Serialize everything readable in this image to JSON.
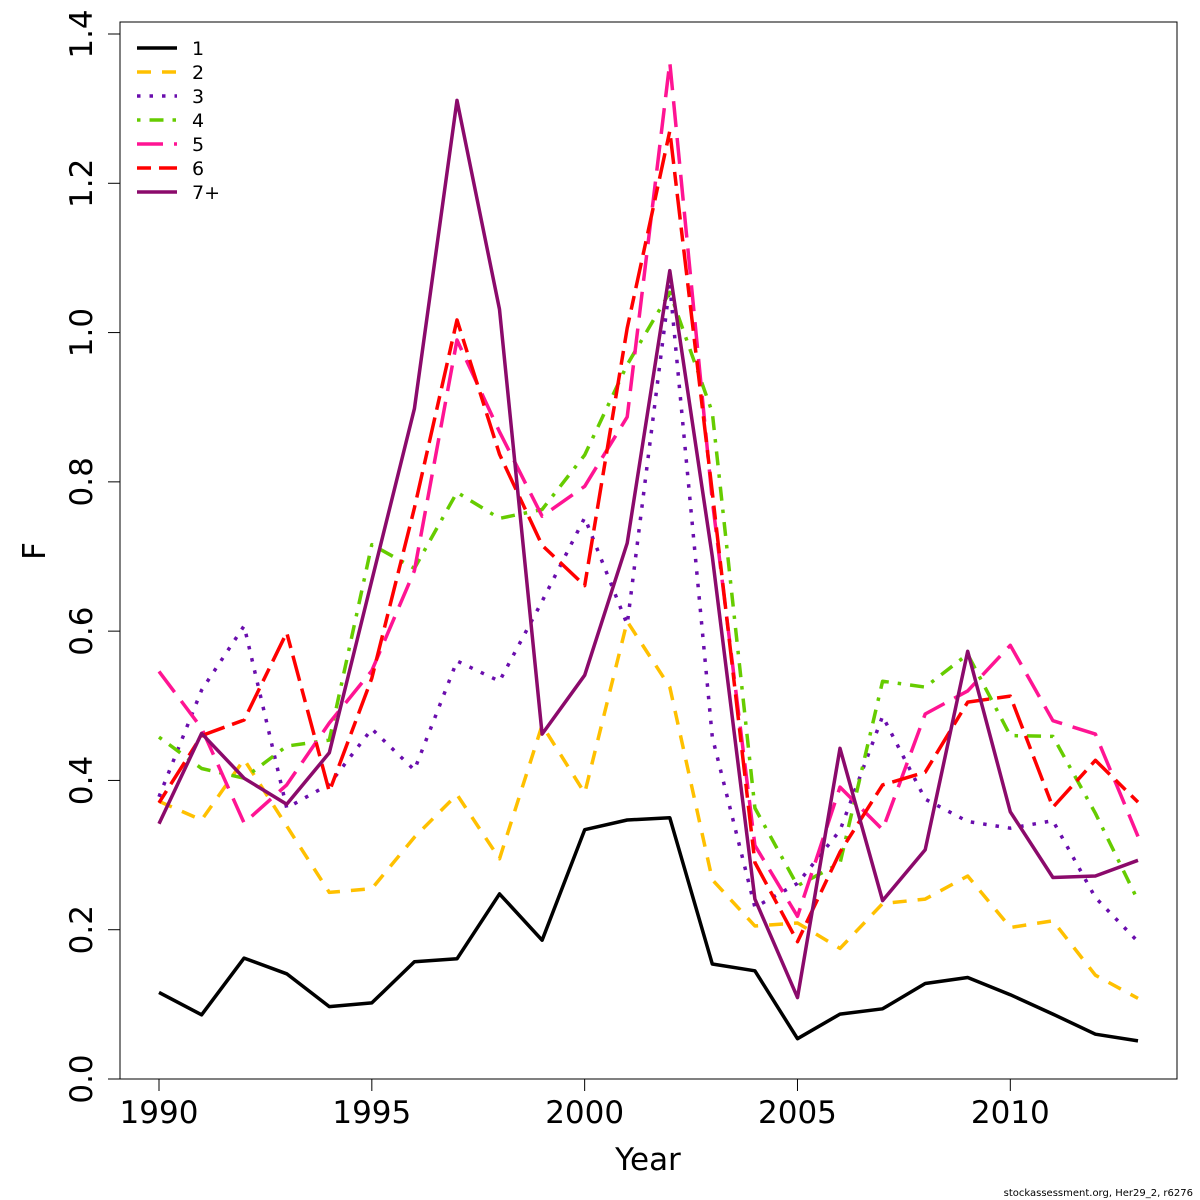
{
  "chart_data": {
    "type": "line",
    "title": "",
    "xlabel": "Year",
    "ylabel": "F",
    "xlim": [
      1990,
      2013
    ],
    "ylim": [
      0.0,
      1.4
    ],
    "xticks": [
      1990,
      1995,
      2000,
      2005,
      2010
    ],
    "yticks": [
      "0.0",
      "0.2",
      "0.4",
      "0.6",
      "0.8",
      "1.0",
      "1.2",
      "1.4"
    ],
    "grid": false,
    "legend_position": "top-left",
    "x": [
      1990,
      1991,
      1992,
      1993,
      1994,
      1995,
      1996,
      1997,
      1998,
      1999,
      2000,
      2001,
      2002,
      2003,
      2004,
      2005,
      2006,
      2007,
      2008,
      2009,
      2010,
      2011,
      2012,
      2013
    ],
    "series": [
      {
        "name": "1",
        "color": "#000000",
        "dash": "solid",
        "values": [
          0.116,
          0.086,
          0.162,
          0.141,
          0.097,
          0.102,
          0.157,
          0.161,
          0.248,
          0.186,
          0.334,
          0.347,
          0.35,
          0.154,
          0.145,
          0.054,
          0.087,
          0.094,
          0.128,
          0.136,
          0.113,
          0.087,
          0.06,
          0.051
        ]
      },
      {
        "name": "2",
        "color": "#FFC000",
        "dash": "dashed",
        "values": [
          0.372,
          0.347,
          0.428,
          0.339,
          0.25,
          0.255,
          0.324,
          0.381,
          0.295,
          0.474,
          0.383,
          0.613,
          0.525,
          0.267,
          0.205,
          0.209,
          0.175,
          0.235,
          0.241,
          0.272,
          0.203,
          0.212,
          0.139,
          0.108
        ]
      },
      {
        "name": "3",
        "color": "#6A0DAD",
        "dash": "dotted",
        "values": [
          0.378,
          0.521,
          0.607,
          0.363,
          0.395,
          0.469,
          0.414,
          0.56,
          0.533,
          0.64,
          0.752,
          0.609,
          1.064,
          0.458,
          0.23,
          0.262,
          0.333,
          0.486,
          0.375,
          0.345,
          0.336,
          0.346,
          0.243,
          0.184
        ]
      },
      {
        "name": "4",
        "color": "#66CC00",
        "dash": "dotdash",
        "values": [
          0.458,
          0.416,
          0.403,
          0.446,
          0.454,
          0.716,
          0.684,
          0.786,
          0.751,
          0.763,
          0.836,
          0.957,
          1.054,
          0.893,
          0.363,
          0.259,
          0.289,
          0.533,
          0.525,
          0.569,
          0.46,
          0.459,
          0.356,
          0.239
        ]
      },
      {
        "name": "5",
        "color": "#FF1493",
        "dash": "longdash",
        "values": [
          0.546,
          0.47,
          0.343,
          0.394,
          0.477,
          0.547,
          0.681,
          0.99,
          0.867,
          0.754,
          0.794,
          0.887,
          1.362,
          0.775,
          0.313,
          0.218,
          0.391,
          0.334,
          0.489,
          0.52,
          0.581,
          0.48,
          0.462,
          0.325
        ]
      },
      {
        "name": "6",
        "color": "#FF0000",
        "dash": "twodash",
        "values": [
          0.37,
          0.46,
          0.481,
          0.598,
          0.385,
          0.537,
          0.765,
          1.017,
          0.837,
          0.715,
          0.661,
          1.006,
          1.27,
          0.786,
          0.29,
          0.184,
          0.304,
          0.394,
          0.411,
          0.505,
          0.513,
          0.364,
          0.427,
          0.371
        ]
      },
      {
        "name": "7+",
        "color": "#8B0A6B",
        "dash": "solid",
        "values": [
          0.342,
          0.463,
          0.403,
          0.368,
          0.437,
          0.668,
          0.898,
          1.311,
          1.031,
          0.462,
          0.541,
          0.718,
          1.083,
          0.7,
          0.241,
          0.109,
          0.443,
          0.239,
          0.307,
          0.573,
          0.358,
          0.27,
          0.272,
          0.293
        ]
      }
    ]
  },
  "credit": "stockassessment.org, Her29_2, r6276"
}
